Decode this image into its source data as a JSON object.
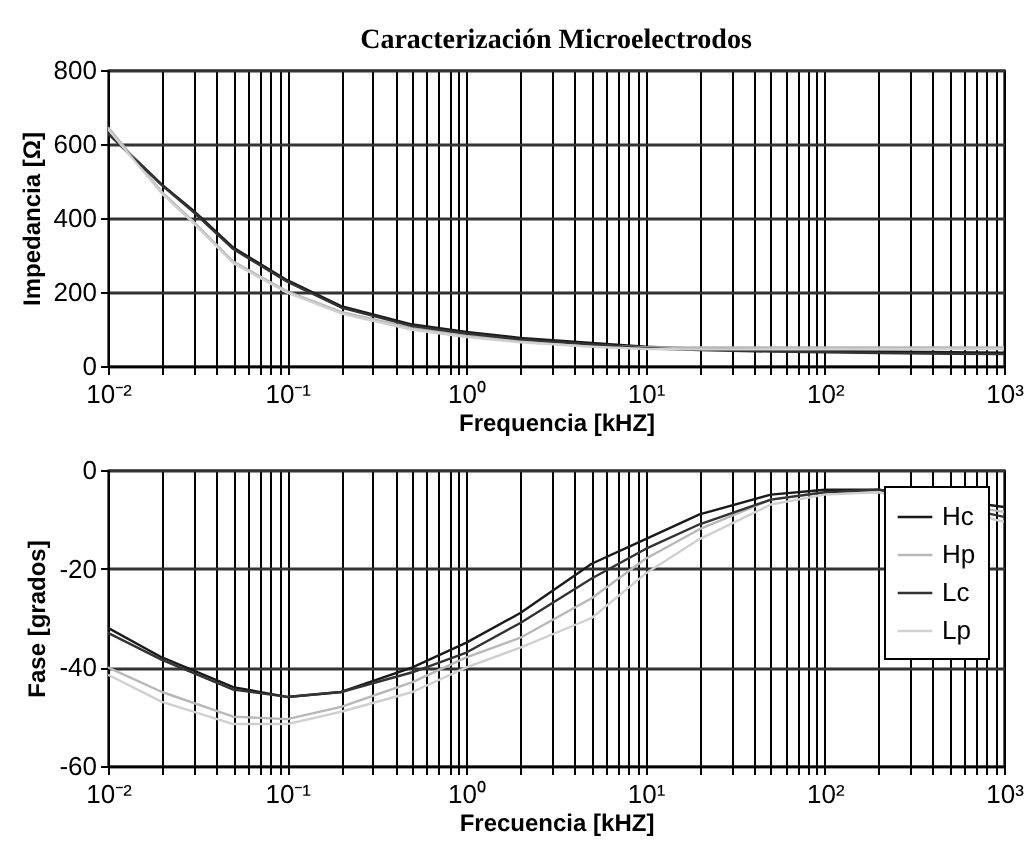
{
  "chart_data": [
    {
      "type": "line",
      "title": "Caracterización Microelectrodos",
      "xlabel": "Frequencia [kHZ]",
      "ylabel": "Impedancia [Ω]",
      "x": [
        0.01,
        0.02,
        0.03,
        0.05,
        0.1,
        0.2,
        0.5,
        1,
        2,
        5,
        10,
        20,
        50,
        100,
        200,
        500,
        1000
      ],
      "series": [
        {
          "color": "#1a1a1a",
          "values": [
            630,
            490,
            420,
            320,
            232,
            162,
            112,
            92,
            76,
            62,
            52,
            47,
            43,
            41,
            39,
            37,
            36
          ]
        },
        {
          "color": "#b8b8b8",
          "values": [
            645,
            470,
            390,
            282,
            202,
            146,
            102,
            82,
            68,
            56,
            50,
            50,
            50,
            50,
            50,
            50,
            50
          ]
        },
        {
          "color": "#333333",
          "values": [
            628,
            488,
            416,
            316,
            228,
            158,
            108,
            88,
            72,
            58,
            48,
            43,
            39,
            37,
            35,
            33,
            32
          ]
        },
        {
          "color": "#d0d0d0",
          "values": [
            640,
            466,
            386,
            278,
            198,
            142,
            98,
            78,
            64,
            52,
            46,
            45,
            45,
            45,
            45,
            46,
            46
          ]
        }
      ],
      "xlim": [
        0.01,
        1000
      ],
      "ylim": [
        0,
        800
      ],
      "log": "x",
      "grid": true,
      "xticks": [
        {
          "value": 0.01,
          "label": "10⁻²"
        },
        {
          "value": 0.02,
          "label": null
        },
        {
          "value": 0.03,
          "label": null
        },
        {
          "value": 0.04,
          "label": null
        },
        {
          "value": 0.05,
          "label": null
        },
        {
          "value": 0.06,
          "label": null
        },
        {
          "value": 0.07,
          "label": null
        },
        {
          "value": 0.08,
          "label": null
        },
        {
          "value": 0.09,
          "label": null
        },
        {
          "value": 0.1,
          "label": "10⁻¹"
        },
        {
          "value": 0.2,
          "label": null
        },
        {
          "value": 0.3,
          "label": null
        },
        {
          "value": 0.4,
          "label": null
        },
        {
          "value": 0.5,
          "label": null
        },
        {
          "value": 0.6,
          "label": null
        },
        {
          "value": 0.7,
          "label": null
        },
        {
          "value": 0.8,
          "label": null
        },
        {
          "value": 0.9,
          "label": null
        },
        {
          "value": 1,
          "label": "10⁰"
        },
        {
          "value": 2,
          "label": null
        },
        {
          "value": 3,
          "label": null
        },
        {
          "value": 4,
          "label": null
        },
        {
          "value": 5,
          "label": null
        },
        {
          "value": 6,
          "label": null
        },
        {
          "value": 7,
          "label": null
        },
        {
          "value": 8,
          "label": null
        },
        {
          "value": 9,
          "label": null
        },
        {
          "value": 10,
          "label": "10¹"
        },
        {
          "value": 20,
          "label": null
        },
        {
          "value": 30,
          "label": null
        },
        {
          "value": 40,
          "label": null
        },
        {
          "value": 50,
          "label": null
        },
        {
          "value": 60,
          "label": null
        },
        {
          "value": 70,
          "label": null
        },
        {
          "value": 80,
          "label": null
        },
        {
          "value": 90,
          "label": null
        },
        {
          "value": 100,
          "label": "10²"
        },
        {
          "value": 200,
          "label": null
        },
        {
          "value": 300,
          "label": null
        },
        {
          "value": 400,
          "label": null
        },
        {
          "value": 500,
          "label": null
        },
        {
          "value": 600,
          "label": null
        },
        {
          "value": 700,
          "label": null
        },
        {
          "value": 800,
          "label": null
        },
        {
          "value": 900,
          "label": null
        },
        {
          "value": 1000,
          "label": "10³"
        }
      ],
      "yticks": [
        0,
        200,
        400,
        600,
        800
      ]
    },
    {
      "type": "line",
      "xlabel": "Frecuencia [kHZ]",
      "ylabel": "Fase [grados]",
      "legend": "top right",
      "x": [
        0.01,
        0.02,
        0.05,
        0.1,
        0.2,
        0.5,
        1,
        2,
        5,
        10,
        20,
        50,
        100,
        200,
        1000
      ],
      "series": [
        {
          "name": "Hc",
          "color": "#1a1a1a",
          "values": [
            -32,
            -38,
            -44,
            -46,
            -45,
            -40,
            -35,
            -29,
            -19,
            -14,
            -9,
            -5,
            -4,
            -4,
            -7.5
          ]
        },
        {
          "name": "Hp",
          "color": "#b8b8b8",
          "values": [
            -40,
            -45,
            -50,
            -50.5,
            -48,
            -43,
            -38,
            -34,
            -26,
            -18,
            -12,
            -6,
            -4.5,
            -4.5,
            -8.5
          ]
        },
        {
          "name": "Lc",
          "color": "#333333",
          "values": [
            -33,
            -38.5,
            -44.5,
            -46,
            -45,
            -41,
            -37,
            -31,
            -22,
            -16,
            -11,
            -6,
            -4.5,
            -4,
            -9.5
          ]
        },
        {
          "name": "Lp",
          "color": "#d0d0d0",
          "values": [
            -41.5,
            -47,
            -51.5,
            -51.5,
            -49,
            -45,
            -40,
            -36,
            -30,
            -21,
            -14,
            -7,
            -5,
            -4.5,
            -10.5
          ]
        }
      ],
      "xlim": [
        0.01,
        1000
      ],
      "ylim": [
        -60,
        0
      ],
      "log": "x",
      "grid": true,
      "xticks": [
        {
          "value": 0.01,
          "label": "10⁻²"
        },
        {
          "value": 0.02,
          "label": null
        },
        {
          "value": 0.03,
          "label": null
        },
        {
          "value": 0.04,
          "label": null
        },
        {
          "value": 0.05,
          "label": null
        },
        {
          "value": 0.06,
          "label": null
        },
        {
          "value": 0.07,
          "label": null
        },
        {
          "value": 0.08,
          "label": null
        },
        {
          "value": 0.09,
          "label": null
        },
        {
          "value": 0.1,
          "label": "10⁻¹"
        },
        {
          "value": 0.2,
          "label": null
        },
        {
          "value": 0.3,
          "label": null
        },
        {
          "value": 0.4,
          "label": null
        },
        {
          "value": 0.5,
          "label": null
        },
        {
          "value": 0.6,
          "label": null
        },
        {
          "value": 0.7,
          "label": null
        },
        {
          "value": 0.8,
          "label": null
        },
        {
          "value": 0.9,
          "label": null
        },
        {
          "value": 1,
          "label": "10⁰"
        },
        {
          "value": 2,
          "label": null
        },
        {
          "value": 3,
          "label": null
        },
        {
          "value": 4,
          "label": null
        },
        {
          "value": 5,
          "label": null
        },
        {
          "value": 6,
          "label": null
        },
        {
          "value": 7,
          "label": null
        },
        {
          "value": 8,
          "label": null
        },
        {
          "value": 9,
          "label": null
        },
        {
          "value": 10,
          "label": "10¹"
        },
        {
          "value": 20,
          "label": null
        },
        {
          "value": 30,
          "label": null
        },
        {
          "value": 40,
          "label": null
        },
        {
          "value": 50,
          "label": null
        },
        {
          "value": 60,
          "label": null
        },
        {
          "value": 70,
          "label": null
        },
        {
          "value": 80,
          "label": null
        },
        {
          "value": 90,
          "label": null
        },
        {
          "value": 100,
          "label": "10²"
        },
        {
          "value": 200,
          "label": null
        },
        {
          "value": 300,
          "label": null
        },
        {
          "value": 400,
          "label": null
        },
        {
          "value": 500,
          "label": null
        },
        {
          "value": 600,
          "label": null
        },
        {
          "value": 700,
          "label": null
        },
        {
          "value": 800,
          "label": null
        },
        {
          "value": 900,
          "label": null
        },
        {
          "value": 1000,
          "label": "10³"
        }
      ],
      "yticks": [
        -60,
        -40,
        -20,
        0
      ]
    }
  ]
}
